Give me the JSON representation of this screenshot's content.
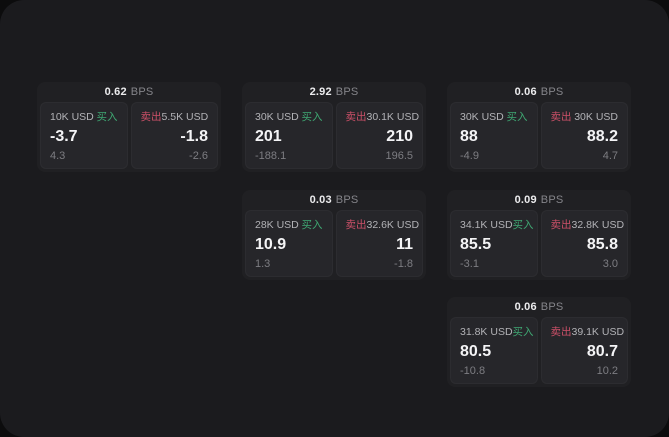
{
  "page": {
    "bg": "#0c0c0d",
    "panel_bg": "#1b1b1e",
    "card_bg": "#202023",
    "subcard_bg": "#26262a",
    "accent_green": "#3fa873",
    "accent_red": "#cc5068",
    "value_color": "#f4f4f6",
    "muted_color": "#7d7d82"
  },
  "labels": {
    "bps": "BPS",
    "buy": "买入",
    "sell": "卖出"
  },
  "cards": [
    {
      "bps": "0.62",
      "buy": {
        "amount": "10K USD",
        "value": "-3.7",
        "delta": "4.3"
      },
      "sell": {
        "amount": "5.5K USD",
        "value": "-1.8",
        "delta": "-2.6"
      }
    },
    {
      "bps": "2.92",
      "buy": {
        "amount": "30K USD",
        "value": "201",
        "delta": "-188.1"
      },
      "sell": {
        "amount": "30.1K USD",
        "value": "210",
        "delta": "196.5"
      }
    },
    {
      "bps": "0.06",
      "buy": {
        "amount": "30K USD",
        "value": "88",
        "delta": "-4.9"
      },
      "sell": {
        "amount": "30K USD",
        "value": "88.2",
        "delta": "4.7"
      }
    },
    {
      "bps": "0.03",
      "buy": {
        "amount": "28K USD",
        "value": "10.9",
        "delta": "1.3"
      },
      "sell": {
        "amount": "32.6K USD",
        "value": "11",
        "delta": "-1.8"
      }
    },
    {
      "bps": "0.09",
      "buy": {
        "amount": "34.1K USD",
        "value": "85.5",
        "delta": "-3.1"
      },
      "sell": {
        "amount": "32.8K USD",
        "value": "85.8",
        "delta": "3.0"
      }
    },
    {
      "bps": "0.06",
      "buy": {
        "amount": "31.8K USD",
        "value": "80.5",
        "delta": "-10.8"
      },
      "sell": {
        "amount": "39.1K USD",
        "value": "80.7",
        "delta": "10.2"
      }
    }
  ]
}
